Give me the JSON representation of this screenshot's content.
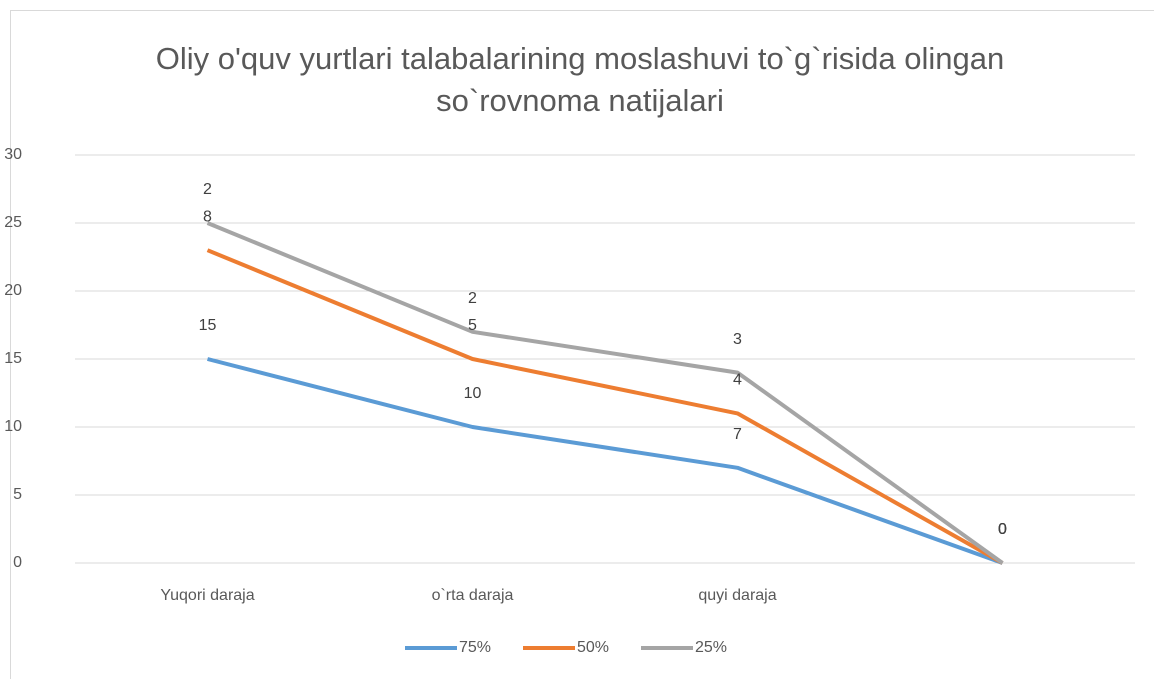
{
  "chart_data": {
    "type": "line",
    "stacked": true,
    "title": "Oliy o'quv yurtlari talabalarining moslashuvi to`g`risida olingan so`rovnoma natijalari",
    "categories": [
      "Yuqori daraja",
      "o`rta  daraja",
      "quyi daraja",
      null
    ],
    "series": [
      {
        "name": "75%",
        "color": "#5b9bd5",
        "values": [
          15,
          10,
          7,
          0
        ]
      },
      {
        "name": "50%",
        "color": "#ed7d31",
        "values": [
          8,
          5,
          4,
          0
        ]
      },
      {
        "name": "25%",
        "color": "#a5a5a5",
        "values": [
          2,
          2,
          3,
          0
        ]
      }
    ],
    "ylim": [
      0,
      30
    ],
    "yticks": [
      0,
      5,
      10,
      15,
      20,
      25,
      30
    ],
    "grid": true,
    "legend": "bottom"
  }
}
